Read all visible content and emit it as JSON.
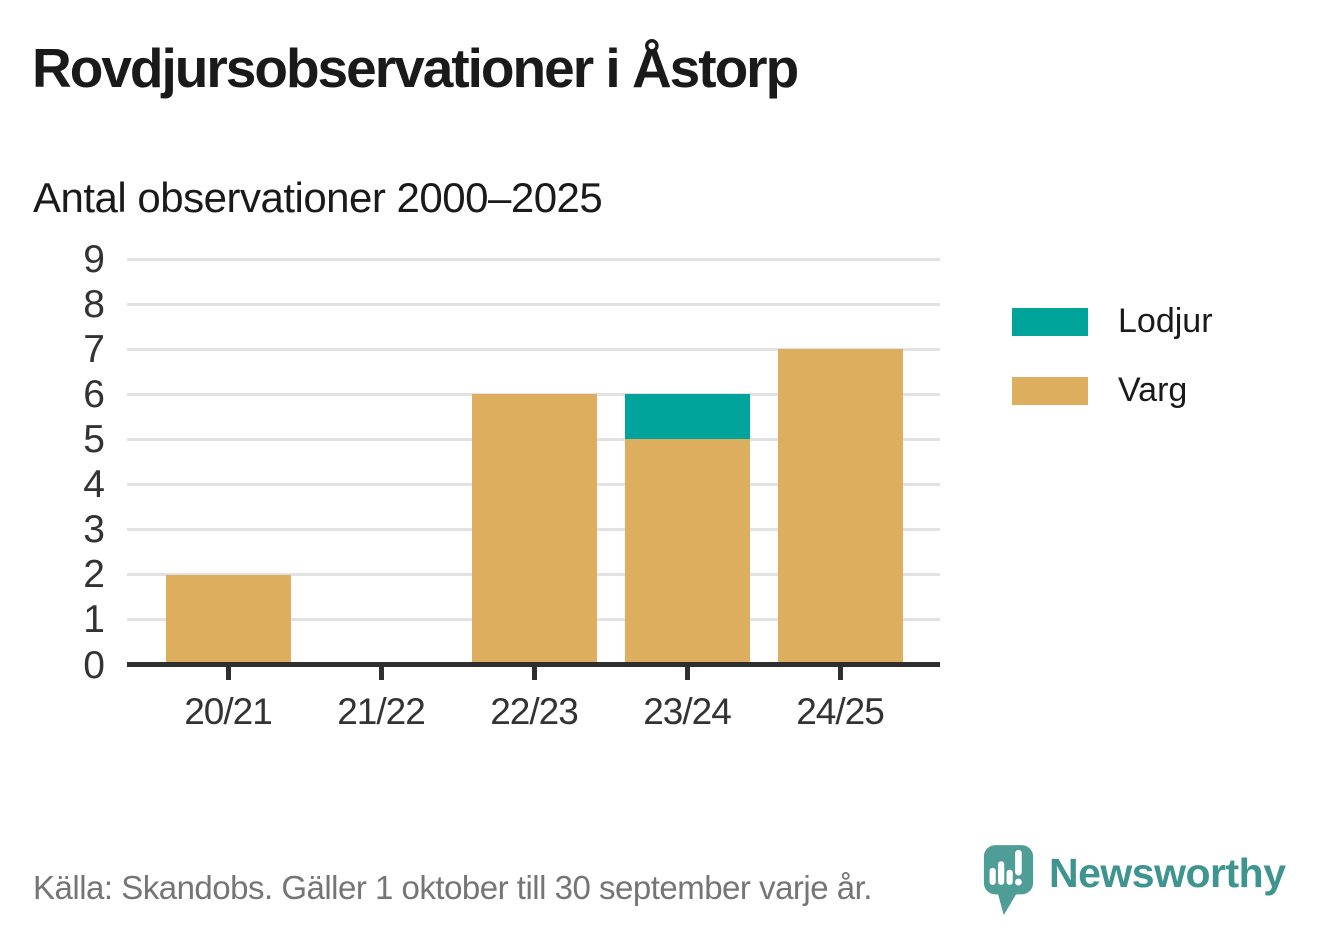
{
  "page": {
    "title": "Rovdjursobservationer i Åstorp",
    "subtitle": "Antal observationer 2000–2025",
    "source": "Källa: Skandobs. Gäller 1 oktober till 30 september varje år.",
    "brand": "Newsworthy"
  },
  "colors": {
    "text": "#1a1a1a",
    "ticktext": "#333333",
    "grid": "#e2e2e2",
    "axis": "#2f2f2f",
    "source": "#757575",
    "brand": "#3e948e",
    "logo_bubble": "#4e9d97",
    "lodjur": "#00a49a",
    "varg": "#dcae5e"
  },
  "legend": [
    {
      "label": "Lodjur",
      "color": "#00a49a"
    },
    {
      "label": "Varg",
      "color": "#dcae5e"
    }
  ],
  "chart_data": {
    "type": "bar",
    "stacked": true,
    "title": "Rovdjursobservationer i Åstorp",
    "subtitle": "Antal observationer 2000–2025",
    "categories": [
      "20/21",
      "21/22",
      "22/23",
      "23/24",
      "24/25"
    ],
    "series": [
      {
        "name": "Varg",
        "color": "#dcae5e",
        "values": [
          2,
          0,
          6,
          5,
          7
        ]
      },
      {
        "name": "Lodjur",
        "color": "#00a49a",
        "values": [
          0,
          0,
          0,
          1,
          0
        ]
      }
    ],
    "totals": [
      2,
      0,
      6,
      6,
      7
    ],
    "xlabel": "",
    "ylabel": "",
    "ylim": [
      0,
      9
    ],
    "ytick_step": 1,
    "grid": true,
    "legend_position": "right",
    "source": "Källa: Skandobs. Gäller 1 oktober till 30 september varje år."
  }
}
